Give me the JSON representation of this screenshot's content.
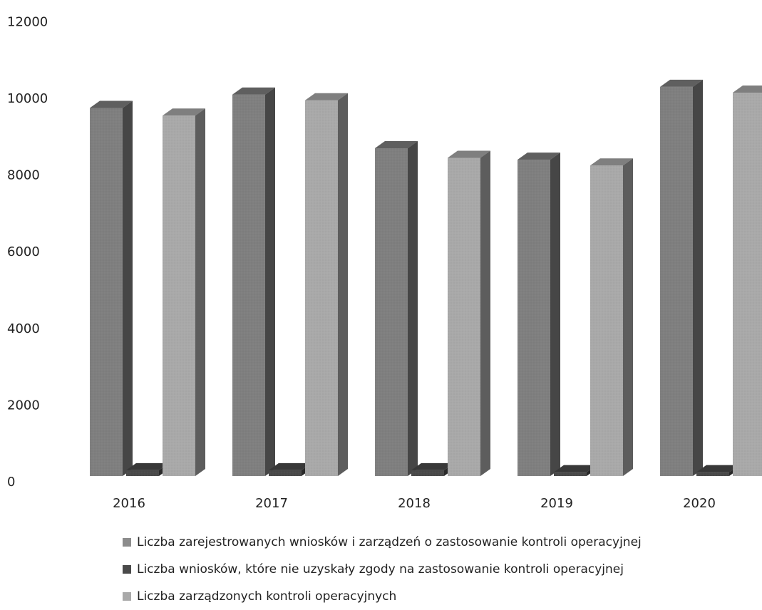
{
  "chart_data": {
    "type": "bar",
    "categories": [
      "2016",
      "2017",
      "2018",
      "2019",
      "2020"
    ],
    "series": [
      {
        "name": "Liczba zarejestrowanych wniosków i zarządzeń o zastosowanie kontroli operacyjnej",
        "values": [
          9600,
          9950,
          8550,
          8250,
          10150
        ],
        "color": "#7f7f7f"
      },
      {
        "name": "Liczba wniosków, które nie uzyskały zgody na zastosowanie kontroli operacyjnej",
        "values": [
          150,
          150,
          150,
          100,
          100
        ],
        "color": "#4a4a4a"
      },
      {
        "name": "Liczba zarządzonych kontroli operacyjnych",
        "values": [
          9400,
          9800,
          8300,
          8100,
          10000
        ],
        "color": "#a9a9a9"
      }
    ],
    "y_ticks": [
      "0",
      "2000",
      "4000",
      "6000",
      "8000",
      "10000",
      "12000"
    ],
    "ylim": [
      0,
      12000
    ],
    "legend_position": "bottom",
    "style": "3d-column"
  }
}
